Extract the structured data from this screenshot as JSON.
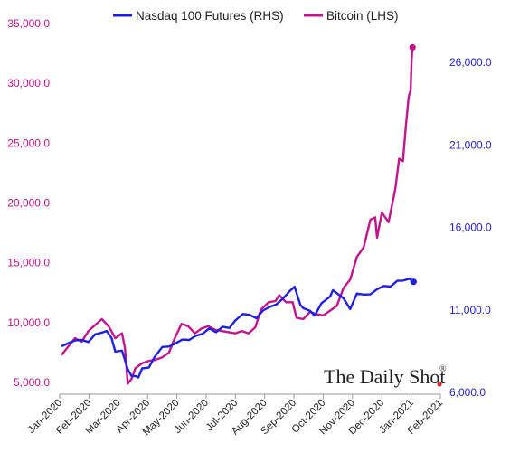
{
  "colors": {
    "nasdaq": "#1F1FE0",
    "bitcoin": "#C0158C",
    "watermark_dot": "#D0262A"
  },
  "legend": {
    "nasdaq_label": "Nasdaq 100 Futures (RHS)",
    "bitcoin_label": "Bitcoin (LHS)"
  },
  "watermark": {
    "text": "The Daily Shot",
    "mark": "®"
  },
  "chart_data": {
    "type": "line",
    "title": "",
    "xlabel": "",
    "ylabel_left": "",
    "ylabel_right": "",
    "x_range": [
      "2020-01-01",
      "2021-02-01"
    ],
    "x_ticks": [
      "Jan-2020",
      "Feb-2020",
      "Mar-2020",
      "Apr-2020",
      "May-2020",
      "Jun-2020",
      "Jul-2020",
      "Aug-2020",
      "Sep-2020",
      "Oct-2020",
      "Nov-2020",
      "Dec-2020",
      "Jan-2021",
      "Feb-2021"
    ],
    "y_left": {
      "range": [
        5000,
        35000
      ],
      "ticks": [
        "5,000.0",
        "10,000.0",
        "15,000.0",
        "20,000.0",
        "25,000.0",
        "30,000.0",
        "35,000.0"
      ],
      "tick_values": [
        5000,
        10000,
        15000,
        20000,
        25000,
        30000,
        35000
      ]
    },
    "y_right": {
      "range": [
        6000,
        28000
      ],
      "ticks": [
        "6,000.0",
        "11,000.0",
        "16,000.0",
        "21,000.0",
        "26,000.0"
      ],
      "tick_values": [
        6000,
        11000,
        16000,
        21000,
        26000
      ]
    },
    "grid": false,
    "legend_position": "top",
    "series": [
      {
        "name": "Bitcoin (LHS)",
        "axis": "left",
        "end_marker": true,
        "points": [
          [
            "2020-01-03",
            7300
          ],
          [
            "2020-01-10",
            8000
          ],
          [
            "2020-01-17",
            8700
          ],
          [
            "2020-01-24",
            8400
          ],
          [
            "2020-01-31",
            9300
          ],
          [
            "2020-02-07",
            9800
          ],
          [
            "2020-02-14",
            10300
          ],
          [
            "2020-02-21",
            9700
          ],
          [
            "2020-02-28",
            8700
          ],
          [
            "2020-03-06",
            9100
          ],
          [
            "2020-03-09",
            7900
          ],
          [
            "2020-03-12",
            4900
          ],
          [
            "2020-03-16",
            5300
          ],
          [
            "2020-03-20",
            6200
          ],
          [
            "2020-03-27",
            6600
          ],
          [
            "2020-04-03",
            6800
          ],
          [
            "2020-04-10",
            6900
          ],
          [
            "2020-04-17",
            7100
          ],
          [
            "2020-04-24",
            7500
          ],
          [
            "2020-04-30",
            8700
          ],
          [
            "2020-05-07",
            9900
          ],
          [
            "2020-05-14",
            9700
          ],
          [
            "2020-05-21",
            9100
          ],
          [
            "2020-05-28",
            9500
          ],
          [
            "2020-06-04",
            9700
          ],
          [
            "2020-06-11",
            9400
          ],
          [
            "2020-06-18",
            9300
          ],
          [
            "2020-06-25",
            9200
          ],
          [
            "2020-07-02",
            9100
          ],
          [
            "2020-07-09",
            9300
          ],
          [
            "2020-07-16",
            9100
          ],
          [
            "2020-07-23",
            9600
          ],
          [
            "2020-07-29",
            11100
          ],
          [
            "2020-08-06",
            11700
          ],
          [
            "2020-08-13",
            11800
          ],
          [
            "2020-08-17",
            12300
          ],
          [
            "2020-08-24",
            11700
          ],
          [
            "2020-08-31",
            11700
          ],
          [
            "2020-09-04",
            10400
          ],
          [
            "2020-09-11",
            10300
          ],
          [
            "2020-09-18",
            10900
          ],
          [
            "2020-09-25",
            10700
          ],
          [
            "2020-10-02",
            10600
          ],
          [
            "2020-10-09",
            11000
          ],
          [
            "2020-10-16",
            11400
          ],
          [
            "2020-10-23",
            12900
          ],
          [
            "2020-10-30",
            13600
          ],
          [
            "2020-11-06",
            15500
          ],
          [
            "2020-11-13",
            16300
          ],
          [
            "2020-11-20",
            18600
          ],
          [
            "2020-11-25",
            18800
          ],
          [
            "2020-11-27",
            17100
          ],
          [
            "2020-12-02",
            19200
          ],
          [
            "2020-12-09",
            18400
          ],
          [
            "2020-12-16",
            21200
          ],
          [
            "2020-12-20",
            23700
          ],
          [
            "2020-12-24",
            23500
          ],
          [
            "2020-12-27",
            26400
          ],
          [
            "2020-12-30",
            28900
          ],
          [
            "2021-01-01",
            29400
          ],
          [
            "2021-01-02",
            32000
          ],
          [
            "2021-01-03",
            33000
          ]
        ]
      },
      {
        "name": "Nasdaq 100 Futures (RHS)",
        "axis": "right",
        "end_marker": true,
        "points": [
          [
            "2020-01-03",
            8790
          ],
          [
            "2020-01-10",
            8980
          ],
          [
            "2020-01-17",
            9150
          ],
          [
            "2020-01-24",
            9180
          ],
          [
            "2020-01-31",
            9050
          ],
          [
            "2020-02-07",
            9520
          ],
          [
            "2020-02-14",
            9620
          ],
          [
            "2020-02-19",
            9720
          ],
          [
            "2020-02-24",
            9300
          ],
          [
            "2020-02-28",
            8470
          ],
          [
            "2020-03-06",
            8530
          ],
          [
            "2020-03-12",
            7400
          ],
          [
            "2020-03-16",
            6990
          ],
          [
            "2020-03-20",
            6990
          ],
          [
            "2020-03-23",
            6900
          ],
          [
            "2020-03-27",
            7450
          ],
          [
            "2020-04-03",
            7500
          ],
          [
            "2020-04-09",
            8150
          ],
          [
            "2020-04-17",
            8750
          ],
          [
            "2020-04-24",
            8780
          ],
          [
            "2020-04-30",
            8950
          ],
          [
            "2020-05-08",
            9200
          ],
          [
            "2020-05-15",
            9180
          ],
          [
            "2020-05-22",
            9430
          ],
          [
            "2020-05-29",
            9550
          ],
          [
            "2020-06-05",
            9880
          ],
          [
            "2020-06-12",
            9650
          ],
          [
            "2020-06-19",
            9980
          ],
          [
            "2020-06-26",
            9900
          ],
          [
            "2020-07-02",
            10350
          ],
          [
            "2020-07-10",
            10750
          ],
          [
            "2020-07-17",
            10700
          ],
          [
            "2020-07-24",
            10500
          ],
          [
            "2020-07-31",
            10960
          ],
          [
            "2020-08-07",
            11180
          ],
          [
            "2020-08-14",
            11330
          ],
          [
            "2020-08-21",
            11700
          ],
          [
            "2020-08-28",
            12150
          ],
          [
            "2020-09-02",
            12400
          ],
          [
            "2020-09-08",
            11300
          ],
          [
            "2020-09-11",
            11100
          ],
          [
            "2020-09-18",
            10950
          ],
          [
            "2020-09-23",
            10650
          ],
          [
            "2020-09-30",
            11400
          ],
          [
            "2020-10-09",
            11800
          ],
          [
            "2020-10-12",
            12200
          ],
          [
            "2020-10-23",
            11700
          ],
          [
            "2020-10-30",
            11050
          ],
          [
            "2020-11-06",
            11990
          ],
          [
            "2020-11-13",
            11930
          ],
          [
            "2020-11-20",
            11940
          ],
          [
            "2020-11-27",
            12250
          ],
          [
            "2020-12-04",
            12450
          ],
          [
            "2020-12-11",
            12410
          ],
          [
            "2020-12-18",
            12760
          ],
          [
            "2020-12-24",
            12770
          ],
          [
            "2020-12-31",
            12890
          ],
          [
            "2021-01-04",
            12700
          ]
        ]
      }
    ]
  }
}
